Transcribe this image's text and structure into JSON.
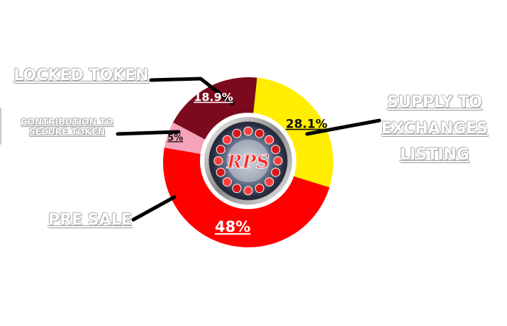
{
  "chart_data": {
    "type": "pie",
    "donut": true,
    "slices": [
      {
        "name": "SUPPLY TO EXCHANGES LISTING",
        "value": 28.1,
        "label": "28.1%",
        "color": "#ffee00",
        "label_color": "#111111"
      },
      {
        "name": "PRE SALE",
        "value": 48,
        "label": "48%",
        "color": "#ff0000",
        "label_color": "#ffffff"
      },
      {
        "name": "CONTRIBUTION TO SECURE TOKEN",
        "value": 5,
        "label": "5%",
        "color": "#f4a3b8",
        "label_color": "#111111"
      },
      {
        "name": "LOCKED TOKEN",
        "value": 18.9,
        "label": "18.9%",
        "color": "#7a0a1c",
        "label_color": "#ffffff"
      }
    ],
    "center_logo_text": "RPS",
    "legend": "callouts"
  },
  "labels": {
    "locked": "LOCKED TOKEN",
    "contrib_line1": "CONTRIBUTION TO",
    "contrib_line2": "SECURE TOKEN",
    "presale": "PRE SALE",
    "supply_line1": "SUPPLY TO",
    "supply_line2": "EXCHANGES",
    "supply_line3": "LISTING"
  }
}
